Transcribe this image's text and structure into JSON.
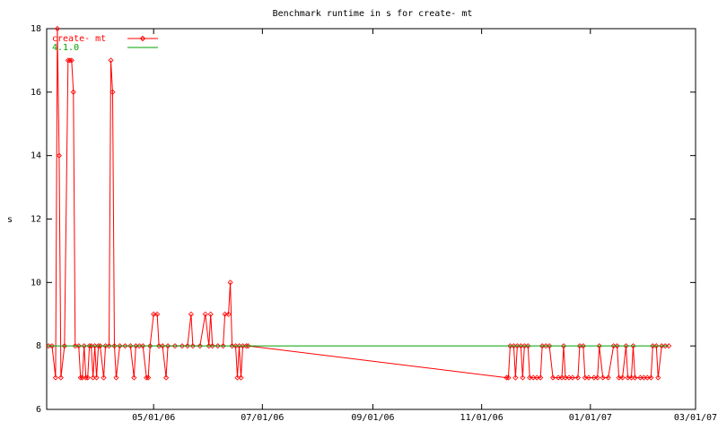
{
  "chart_data": {
    "type": "line",
    "title": "Benchmark runtime in s for create-  mt",
    "y_label": "s",
    "xlim": [
      "03/02/06",
      "03/01/07"
    ],
    "xticks": [
      "05/01/06",
      "07/01/06",
      "09/01/06",
      "11/01/06",
      "01/01/07",
      "03/01/07"
    ],
    "ylim": [
      6,
      18
    ],
    "yticks": [
      6,
      8,
      10,
      12,
      14,
      16,
      18
    ],
    "legend": "top-left",
    "series": [
      {
        "name": "create-  mt",
        "color": "#ff0000",
        "marker": true,
        "x": [
          "03/03/06",
          "03/05/06",
          "03/07/06",
          "03/08/06",
          "03/09/06",
          "03/10/06",
          "03/12/06",
          "03/14/06",
          "03/15/06",
          "03/16/06",
          "03/17/06",
          "03/18/06",
          "03/20/06",
          "03/21/06",
          "03/22/06",
          "03/23/06",
          "03/24/06",
          "03/25/06",
          "03/26/06",
          "03/27/06",
          "03/28/06",
          "03/29/06",
          "03/30/06",
          "03/31/06",
          "04/01/06",
          "04/03/06",
          "04/04/06",
          "04/06/06",
          "04/07/06",
          "04/08/06",
          "04/09/06",
          "04/10/06",
          "04/12/06",
          "04/15/06",
          "04/18/06",
          "04/20/06",
          "04/21/06",
          "04/23/06",
          "04/25/06",
          "04/27/06",
          "04/28/06",
          "04/29/06",
          "05/01/06",
          "05/03/06",
          "05/04/06",
          "05/06/06",
          "05/08/06",
          "05/09/06",
          "05/13/06",
          "05/17/06",
          "05/20/06",
          "05/22/06",
          "05/23/06",
          "05/27/06",
          "05/30/06",
          "06/01/06",
          "06/02/06",
          "06/03/06",
          "06/06/06",
          "06/09/06",
          "06/10/06",
          "06/12/06",
          "06/13/06",
          "06/14/06",
          "06/16/06",
          "06/17/06",
          "06/18/06",
          "06/19/06",
          "06/20/06",
          "06/22/06",
          "06/23/06",
          "11/15/06",
          "11/16/06",
          "11/17/06",
          "11/19/06",
          "11/20/06",
          "11/21/06",
          "11/23/06",
          "11/24/06",
          "11/25/06",
          "11/27/06",
          "11/28/06",
          "11/30/06",
          "12/02/06",
          "12/04/06",
          "12/05/06",
          "12/07/06",
          "12/09/06",
          "12/11/06",
          "12/14/06",
          "12/16/06",
          "12/17/06",
          "12/18/06",
          "12/20/06",
          "12/22/06",
          "12/25/06",
          "12/26/06",
          "12/28/06",
          "12/29/06",
          "12/31/06",
          "01/03/07",
          "01/05/07",
          "01/06/07",
          "01/08/07",
          "01/11/07",
          "01/14/07",
          "01/16/07",
          "01/17/07",
          "01/19/07",
          "01/21/07",
          "01/22/07",
          "01/24/07",
          "01/25/07",
          "01/26/07",
          "01/29/07",
          "01/31/07",
          "02/02/07",
          "02/04/07",
          "02/05/07",
          "02/07/07",
          "02/08/07",
          "02/10/07",
          "02/12/07",
          "02/14/07"
        ],
        "values": [
          8,
          8,
          7,
          18,
          14,
          7,
          8,
          17,
          17,
          17,
          16,
          8,
          8,
          7,
          7,
          8,
          7,
          7,
          8,
          8,
          7,
          8,
          7,
          8,
          8,
          7,
          8,
          8,
          17,
          16,
          8,
          7,
          8,
          8,
          8,
          7,
          8,
          8,
          8,
          7,
          7,
          8,
          9,
          9,
          8,
          8,
          7,
          8,
          8,
          8,
          8,
          9,
          8,
          8,
          9,
          8,
          9,
          8,
          8,
          8,
          9,
          9,
          10,
          8,
          8,
          7,
          8,
          7,
          8,
          8,
          8,
          7,
          7,
          8,
          8,
          7,
          8,
          8,
          7,
          8,
          8,
          7,
          7,
          7,
          7,
          8,
          8,
          8,
          7,
          7,
          7,
          8,
          7,
          7,
          7,
          7,
          8,
          8,
          7,
          7,
          7,
          7,
          8,
          7,
          7,
          8,
          8,
          7,
          7,
          8,
          7,
          7,
          8,
          7,
          7,
          7,
          7,
          7,
          8,
          8,
          7,
          8,
          8,
          8
        ]
      },
      {
        "name": "4.1.0",
        "color": "#00a000",
        "marker": false,
        "x": [
          "03/02/06",
          "02/14/07"
        ],
        "values": [
          8,
          8
        ]
      }
    ]
  }
}
